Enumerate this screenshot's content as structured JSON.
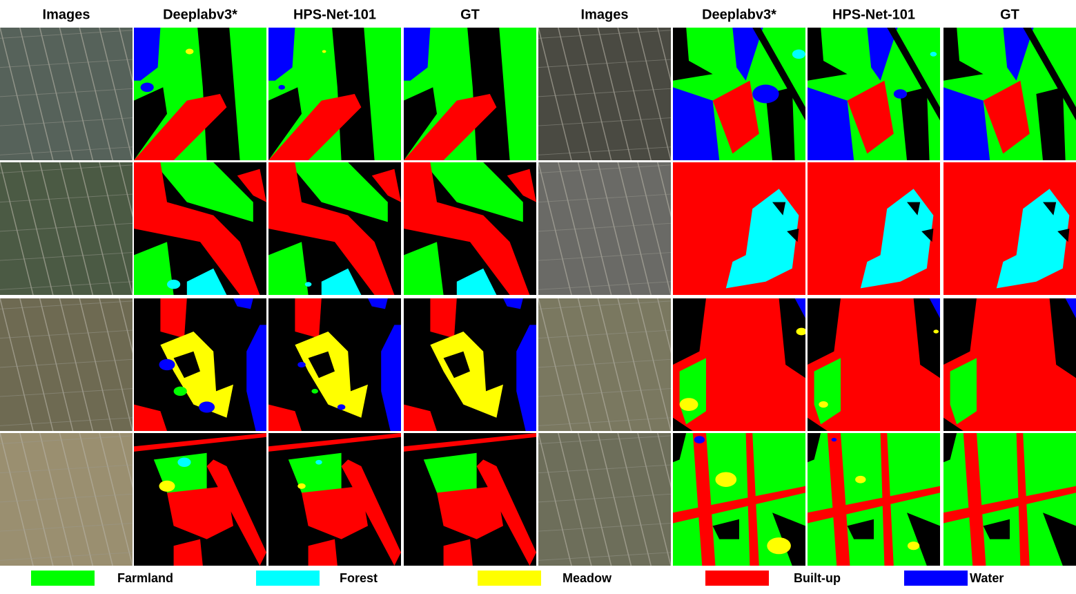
{
  "headers": [
    "Images",
    "Deeplabv3*",
    "HPS-Net-101",
    "GT",
    "Images",
    "Deeplabv3*",
    "HPS-Net-101",
    "GT"
  ],
  "legend": [
    {
      "name": "Farmland",
      "color": "#00ff00"
    },
    {
      "name": "Forest",
      "color": "#00ffff"
    },
    {
      "name": "Meadow",
      "color": "#ffff00"
    },
    {
      "name": "Built-up",
      "color": "#ff0000"
    },
    {
      "name": "Water",
      "color": "#0000ff"
    }
  ]
}
